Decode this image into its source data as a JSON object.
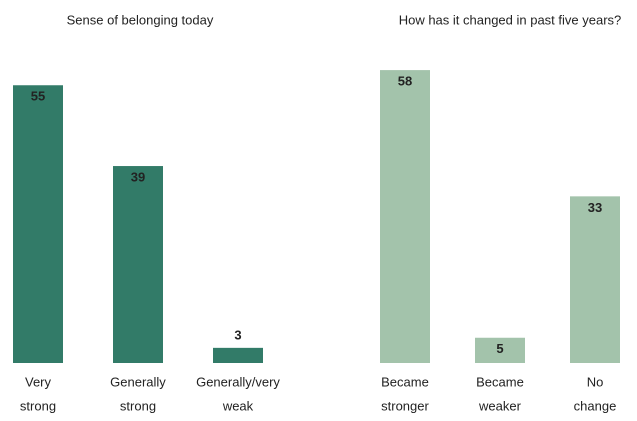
{
  "chart_data": [
    {
      "type": "bar",
      "title": "Sense of belonging today",
      "categories": [
        [
          "Very",
          "strong"
        ],
        [
          "Generally",
          "strong"
        ],
        [
          "Generally/very",
          "weak"
        ]
      ],
      "values": [
        55,
        39,
        3
      ],
      "color": "#327b68"
    },
    {
      "type": "bar",
      "title": "How has it changed in past five years?",
      "categories": [
        [
          "Became",
          "stronger"
        ],
        [
          "Became",
          "weaker"
        ],
        [
          "No",
          "change"
        ]
      ],
      "values": [
        58,
        5,
        33
      ],
      "color": "#a3c3ab"
    }
  ]
}
